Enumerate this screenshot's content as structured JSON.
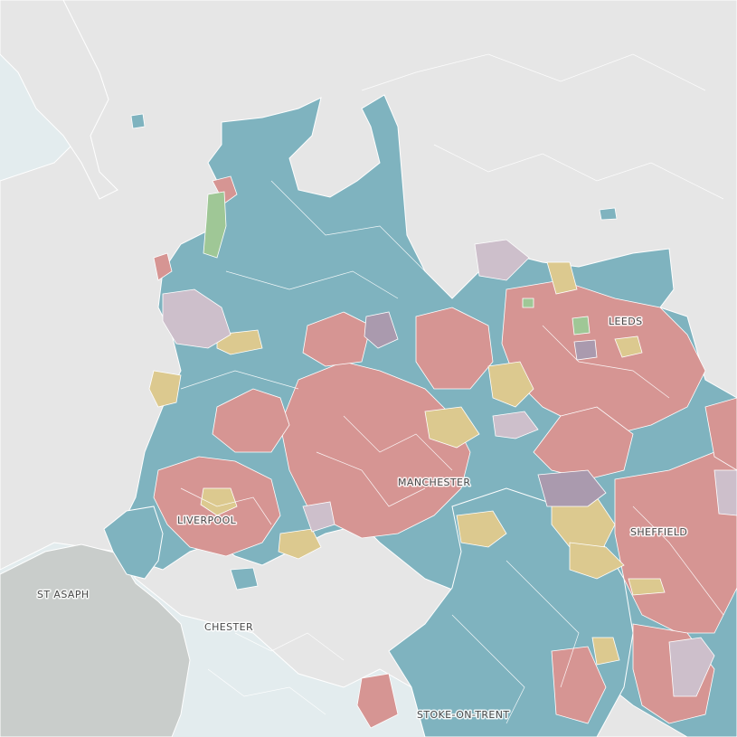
{
  "palette": {
    "sea": "#e3ecee",
    "land_unshaded": "#e6e6e6",
    "wales": "#c9cdcb",
    "teal": "#7fb3bf",
    "red": "#d69593",
    "yellow": "#dcc98f",
    "purple": "#aa9aae",
    "lilac": "#cdbfcb",
    "green": "#9fc796",
    "boundary": "#ffffff"
  },
  "labels": {
    "leeds": "LEEDS",
    "manchester": "MANCHESTER",
    "liverpool": "LIVERPOOL",
    "sheffield": "SHEFFIELD",
    "st_asaph": "ST ASAPH",
    "chester": "CHESTER",
    "stoke": "STOKE-ON-TRENT"
  }
}
